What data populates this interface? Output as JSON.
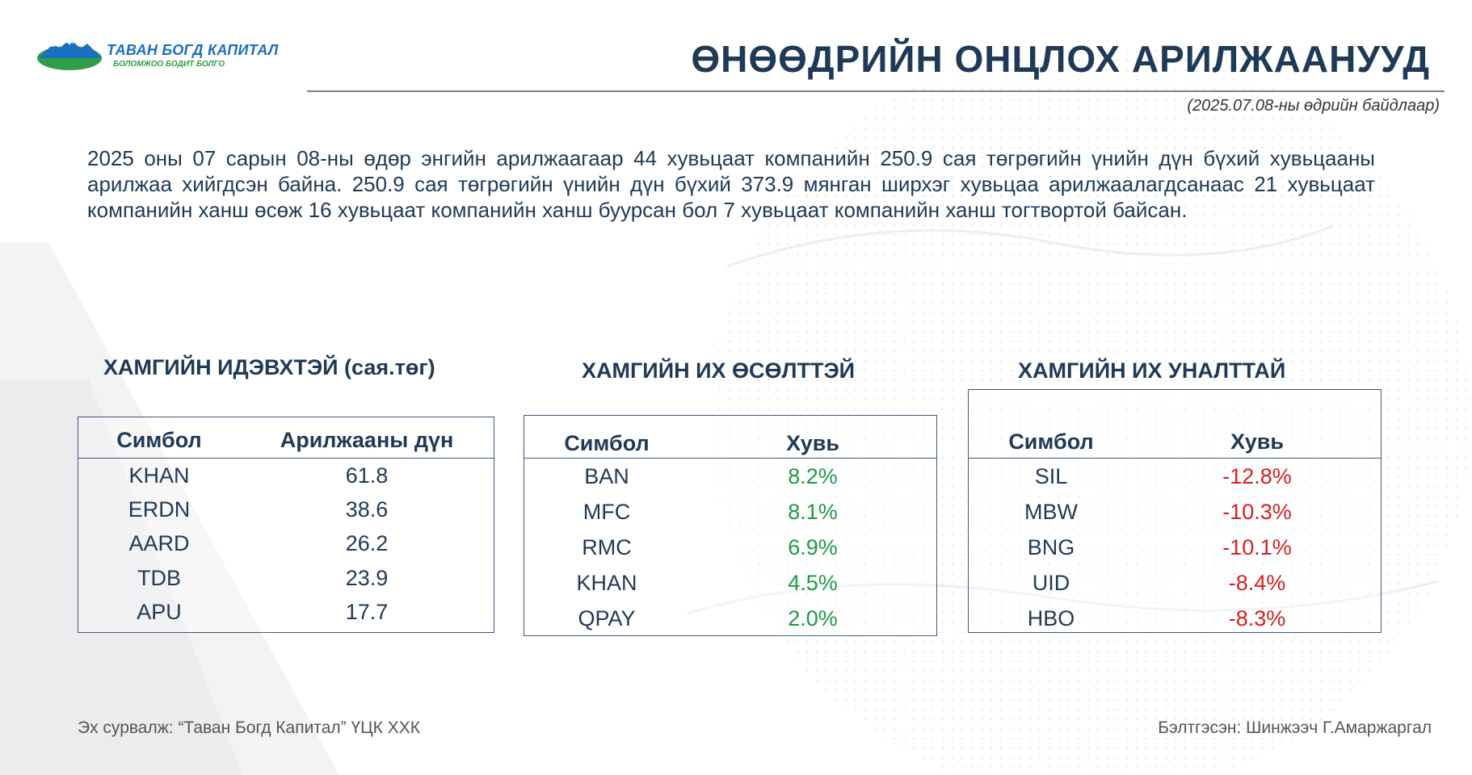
{
  "brand": {
    "name": "ТАВАН БОГД КАПИТАЛ",
    "slogan": "БОЛОМЖОО БОДИТ БОЛГО"
  },
  "title": "ӨНӨӨДРИЙН ОНЦЛОХ АРИЛЖААНУУД",
  "as_of": "(2025.07.08-ны өдрийн байдлаар)",
  "summary": "2025 оны 07 сарын 08-ны өдөр энгийн арилжаагаар 44 хувьцаат компанийн 250.9 сая төгрөгийн үнийн дүн бүхий хувьцааны арилжаа хийгдсэн байна. 250.9 сая төгрөгийн үнийн дүн бүхий 373.9 мянган ширхэг хувьцаа арилжаалагдсанаас 21 хувьцаат компанийн ханш өсөж 16 хувьцаат компанийн ханш буурсан бол 7 хувьцаат компанийн ханш тогтвортой байсан.",
  "active": {
    "title": "ХАМГИЙН ИДЭВХТЭЙ (сая.төг)",
    "headers": [
      "Симбол",
      "Арилжааны дүн"
    ],
    "rows": [
      {
        "symbol": "KHAN",
        "value": "61.8"
      },
      {
        "symbol": "ERDN",
        "value": "38.6"
      },
      {
        "symbol": "AARD",
        "value": "26.2"
      },
      {
        "symbol": "TDB",
        "value": "23.9"
      },
      {
        "symbol": "APU",
        "value": "17.7"
      }
    ]
  },
  "gainers": {
    "title": "ХАМГИЙН ИХ ӨСӨЛТТЭЙ",
    "headers": [
      "Симбол",
      "Хувь"
    ],
    "rows": [
      {
        "symbol": "BAN",
        "value": "8.2%"
      },
      {
        "symbol": "MFC",
        "value": "8.1%"
      },
      {
        "symbol": "RMC",
        "value": "6.9%"
      },
      {
        "symbol": "KHAN",
        "value": "4.5%"
      },
      {
        "symbol": "QPAY",
        "value": "2.0%"
      }
    ]
  },
  "losers": {
    "title": "ХАМГИЙН ИХ УНАЛТТАЙ",
    "headers": [
      "Симбол",
      "Хувь"
    ],
    "rows": [
      {
        "symbol": "SIL",
        "value": "-12.8%"
      },
      {
        "symbol": "MBW",
        "value": "-10.3%"
      },
      {
        "symbol": "BNG",
        "value": "-10.1%"
      },
      {
        "symbol": "UID",
        "value": "-8.4%"
      },
      {
        "symbol": "HBO",
        "value": "-8.3%"
      }
    ]
  },
  "footer": {
    "source": "Эх сурвалж: “Таван Богд Капитал” ҮЦК ХХК",
    "prepared_by": "Бэлтгэсэн: Шинжээч Г.Амаржаргал"
  },
  "colors": {
    "text_primary": "#1f3a56",
    "gain": "#1e9a45",
    "loss": "#d42020",
    "brand_blue": "#1a6fbf",
    "brand_green": "#2e9e49"
  }
}
